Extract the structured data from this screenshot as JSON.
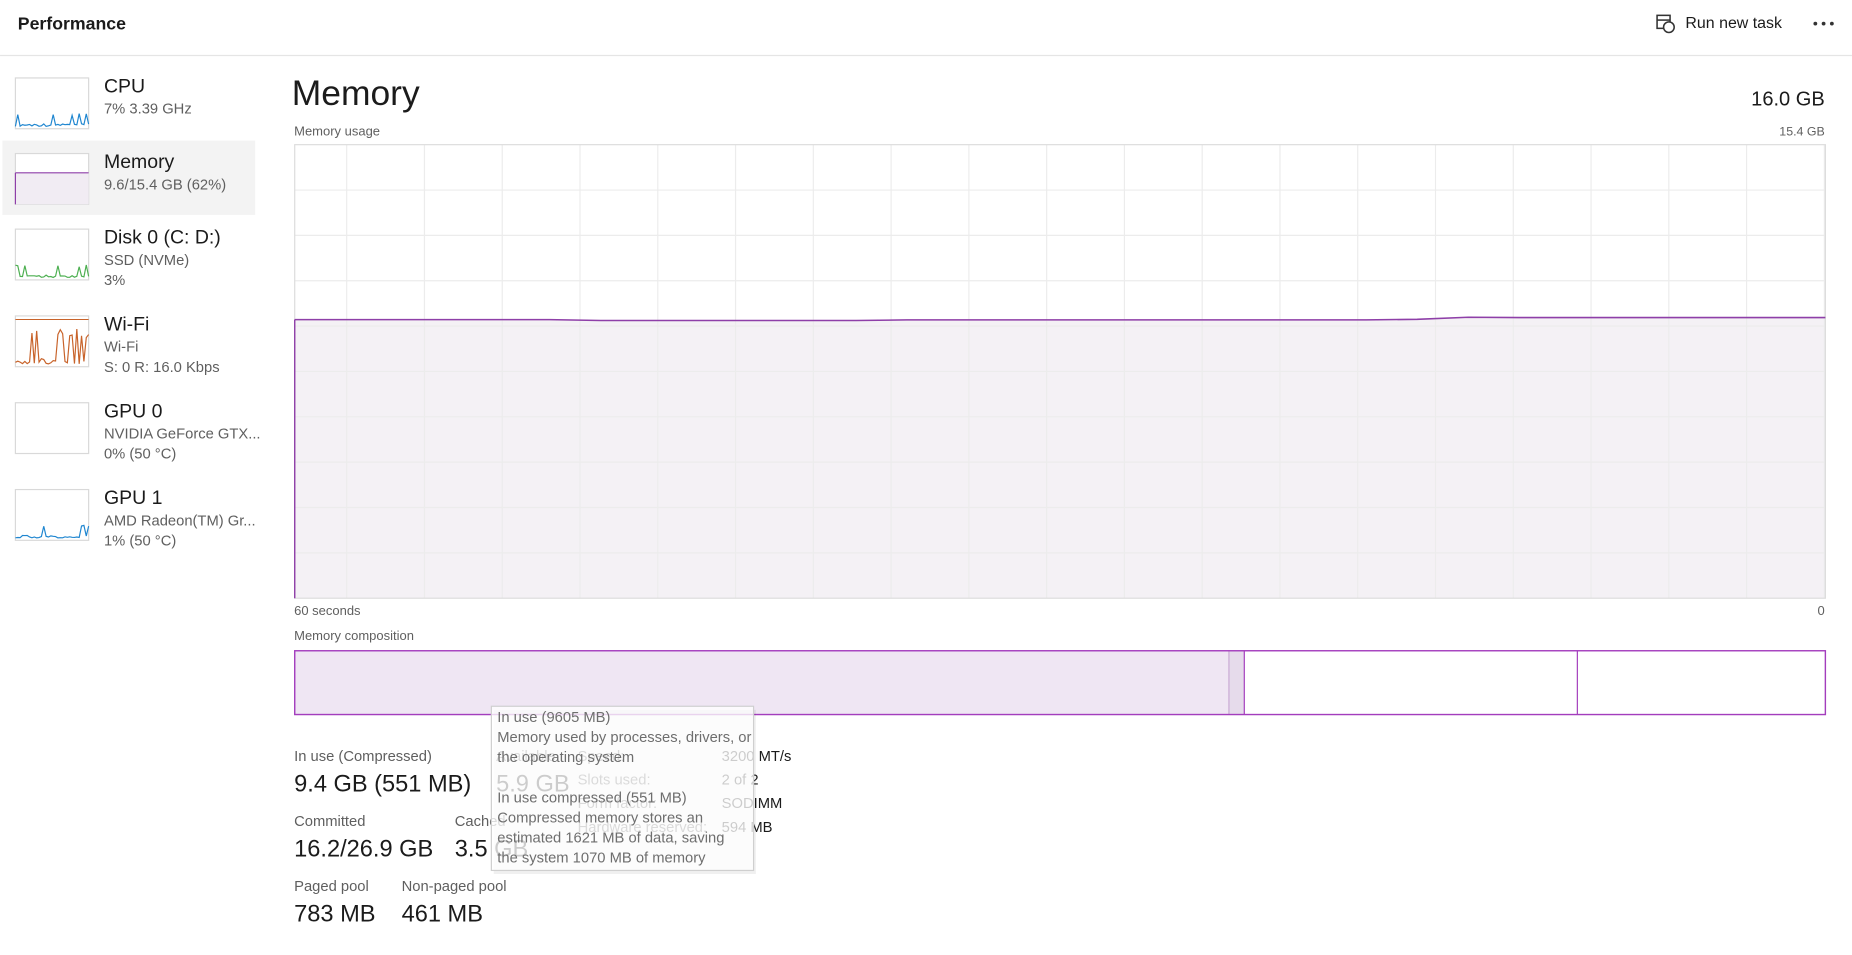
{
  "header": {
    "title": "Performance",
    "run_new_task": "Run new task"
  },
  "sidebar": [
    {
      "name": "CPU",
      "details": [
        "7% 3.39 GHz"
      ],
      "color": "#1f86d0"
    },
    {
      "name": "Memory",
      "details": [
        "9.6/15.4 GB (62%)"
      ],
      "color": "#8e3fa8",
      "selected": true
    },
    {
      "name": "Disk 0 (C: D:)",
      "details": [
        "SSD (NVMe)",
        "3%"
      ],
      "color": "#4caf50"
    },
    {
      "name": "Wi-Fi",
      "details": [
        "Wi-Fi",
        "S: 0 R: 16.0 Kbps"
      ],
      "color": "#c8632a"
    },
    {
      "name": "GPU 0",
      "details": [
        "NVIDIA GeForce GTX...",
        "0% (50 °C)"
      ]
    },
    {
      "name": "GPU 1",
      "details": [
        "AMD Radeon(TM) Gr...",
        "1% (50 °C)"
      ],
      "color": "#1f86d0"
    }
  ],
  "main": {
    "title": "Memory",
    "total": "16.0 GB"
  },
  "usage_chart": {
    "type": "line",
    "label": "Memory usage",
    "max_label": "15.4 GB",
    "start_label": "60 seconds",
    "end_label": "0",
    "ylim": [
      0,
      15.4
    ],
    "color": "#8e3fa8",
    "values": [
      9.46,
      9.46,
      9.46,
      9.46,
      9.46,
      9.46,
      9.43,
      9.43,
      9.43,
      9.43,
      9.43,
      9.43,
      9.45,
      9.45,
      9.45,
      9.45,
      9.45,
      9.45,
      9.45,
      9.45,
      9.45,
      9.45,
      9.47,
      9.54,
      9.53,
      9.53,
      9.53,
      9.53,
      9.53,
      9.53,
      9.53
    ]
  },
  "composition": {
    "label": "Memory composition"
  },
  "stats": [
    {
      "label": "In use (Compressed)",
      "value": "9.4 GB (551 MB)"
    },
    {
      "label": "Available",
      "value": "5.9 GB"
    },
    {
      "label": "Committed",
      "value": "16.2/26.9 GB"
    },
    {
      "label": "Cached",
      "value": "3.5 GB"
    },
    {
      "label": "Paged pool",
      "value": "783 MB"
    },
    {
      "label": "Non-paged pool",
      "value": "461 MB"
    }
  ],
  "specs": [
    {
      "label": "Speed:",
      "value": "3200 MT/s"
    },
    {
      "label": "Slots used:",
      "value": "2 of 2"
    },
    {
      "label": "Form factor:",
      "value": "SODIMM"
    },
    {
      "label": "Hardware reserved:",
      "value": "594 MB"
    }
  ],
  "tooltip": {
    "lines": [
      "In use (9605 MB)",
      "Memory used by processes, drivers, or",
      "the operating system",
      "",
      "In use compressed (551 MB)",
      "Compressed memory stores an",
      "estimated 1621 MB of data, saving",
      "the system 1070 MB of memory"
    ]
  }
}
